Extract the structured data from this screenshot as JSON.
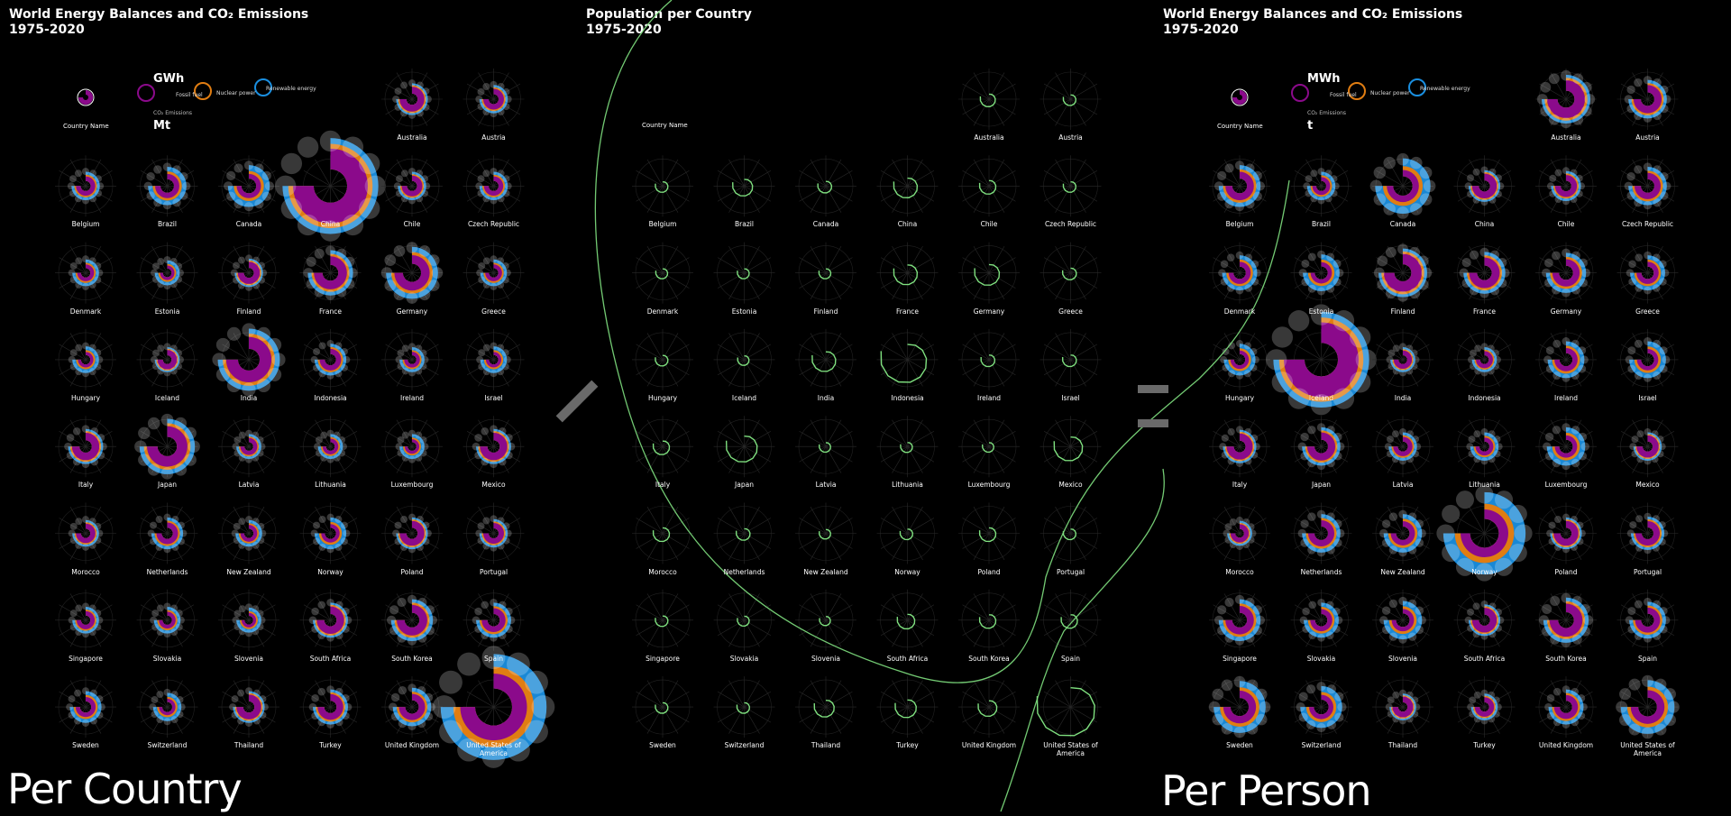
{
  "panels": [
    {
      "title": "World Energy Balances and CO₂ Emissions",
      "subtitle": "1975-2020",
      "caption": "Per Country",
      "unit_energy": "GWh",
      "unit_co2": "Mt"
    },
    {
      "title": "Population per Country",
      "subtitle": "1975-2020",
      "caption": ""
    },
    {
      "title": "World Energy Balances and CO₂ Emissions",
      "subtitle": "1975-2020",
      "caption": "Per Person",
      "unit_energy": "MWh",
      "unit_co2": "t"
    }
  ],
  "legend": {
    "country_name": "Country Name",
    "fossil": "Fossil fuel",
    "nuclear": "Nuclear power",
    "renewable": "Renewable energy",
    "co2": "CO₂ Emissions"
  },
  "operators": {
    "divide": "/",
    "equals": "="
  },
  "colors": {
    "fossil": "#8b0a8b",
    "nuclear": "#e07d12",
    "renewable": "#1a8fe0",
    "co2": "#cccccc",
    "population": "#7fe07f",
    "background": "#000000"
  },
  "chart_data": {
    "type": "radial small multiples",
    "years": [
      1975,
      2020
    ],
    "countries": [
      "Australia",
      "Austria",
      "Belgium",
      "Brazil",
      "Canada",
      "China",
      "Chile",
      "Czech Republic",
      "Denmark",
      "Estonia",
      "Finland",
      "France",
      "Germany",
      "Greece",
      "Hungary",
      "Iceland",
      "India",
      "Indonesia",
      "Ireland",
      "Israel",
      "Italy",
      "Japan",
      "Latvia",
      "Lithuania",
      "Luxembourg",
      "Mexico",
      "Morocco",
      "Netherlands",
      "New Zealand",
      "Norway",
      "Poland",
      "Portugal",
      "Singapore",
      "Slovakia",
      "Slovenia",
      "South Africa",
      "South Korea",
      "Spain",
      "Sweden",
      "Switzerland",
      "Thailand",
      "Turkey",
      "United Kingdom",
      "United States of America"
    ],
    "per_country_relative_size": {
      "Australia": 0.3,
      "Austria": 0.2,
      "Belgium": 0.2,
      "Brazil": 0.5,
      "Canada": 0.6,
      "China": 2.2,
      "Chile": 0.2,
      "Czech Republic": 0.2,
      "Denmark": 0.15,
      "Estonia": 0.1,
      "Finland": 0.2,
      "France": 0.7,
      "Germany": 0.9,
      "Greece": 0.15,
      "Hungary": 0.15,
      "Iceland": 0.1,
      "India": 1.2,
      "Indonesia": 0.3,
      "Ireland": 0.1,
      "Israel": 0.15,
      "Italy": 0.4,
      "Japan": 1.0,
      "Latvia": 0.1,
      "Lithuania": 0.1,
      "Luxembourg": 0.1,
      "Mexico": 0.4,
      "Morocco": 0.15,
      "Netherlands": 0.3,
      "New Zealand": 0.15,
      "Norway": 0.3,
      "Poland": 0.3,
      "Portugal": 0.2,
      "Singapore": 0.15,
      "Slovakia": 0.15,
      "Slovenia": 0.1,
      "South Africa": 0.4,
      "South Korea": 0.6,
      "Spain": 0.4,
      "Sweden": 0.3,
      "Switzerland": 0.2,
      "Thailand": 0.3,
      "Turkey": 0.4,
      "United Kingdom": 0.5,
      "United States of America": 2.5
    },
    "per_person_relative_size": {
      "Australia": 0.8,
      "Austria": 0.5,
      "Belgium": 0.6,
      "Brazil": 0.2,
      "Canada": 1.0,
      "China": 0.3,
      "Chile": 0.25,
      "Czech Republic": 0.5,
      "Denmark": 0.4,
      "Estonia": 0.45,
      "Finland": 0.8,
      "France": 0.6,
      "Germany": 0.55,
      "Greece": 0.4,
      "Hungary": 0.3,
      "Iceland": 2.2,
      "India": 0.1,
      "Indonesia": 0.1,
      "Ireland": 0.45,
      "Israel": 0.45,
      "Italy": 0.35,
      "Japan": 0.5,
      "Latvia": 0.2,
      "Lithuania": 0.2,
      "Luxembourg": 0.5,
      "Mexico": 0.2,
      "Morocco": 0.1,
      "Netherlands": 0.5,
      "New Zealand": 0.5,
      "Norway": 1.8,
      "Poland": 0.3,
      "Portugal": 0.35,
      "Singapore": 0.6,
      "Slovakia": 0.4,
      "Slovenia": 0.5,
      "South Africa": 0.3,
      "South Korea": 0.7,
      "Spain": 0.45,
      "Sweden": 0.9,
      "Switzerland": 0.6,
      "Thailand": 0.15,
      "Turkey": 0.15,
      "United Kingdom": 0.4,
      "United States of America": 0.95
    },
    "population_relative_size": {
      "Australia": 0.25,
      "Austria": 0.15,
      "Belgium": 0.15,
      "Brazil": 0.45,
      "Canada": 0.2,
      "China": 0.6,
      "Chile": 0.3,
      "Czech Republic": 0.15,
      "Denmark": 0.12,
      "Estonia": 0.12,
      "Finland": 0.12,
      "France": 0.6,
      "Germany": 0.65,
      "Greece": 0.2,
      "Hungary": 0.15,
      "Iceland": 0.1,
      "India": 0.6,
      "Indonesia": 1.5,
      "Ireland": 0.2,
      "Israel": 0.2,
      "Italy": 0.3,
      "Japan": 0.9,
      "Latvia": 0.1,
      "Lithuania": 0.12,
      "Luxembourg": 0.1,
      "Mexico": 0.8,
      "Morocco": 0.3,
      "Netherlands": 0.2,
      "New Zealand": 0.1,
      "Norway": 0.15,
      "Poland": 0.3,
      "Portugal": 0.15,
      "Singapore": 0.15,
      "Slovakia": 0.12,
      "Slovenia": 0.08,
      "South Africa": 0.35,
      "South Korea": 0.3,
      "Spain": 0.3,
      "Sweden": 0.15,
      "Switzerland": 0.15,
      "Thailand": 0.45,
      "Turkey": 0.5,
      "United Kingdom": 0.4,
      "United States of America": 2.0
    }
  }
}
